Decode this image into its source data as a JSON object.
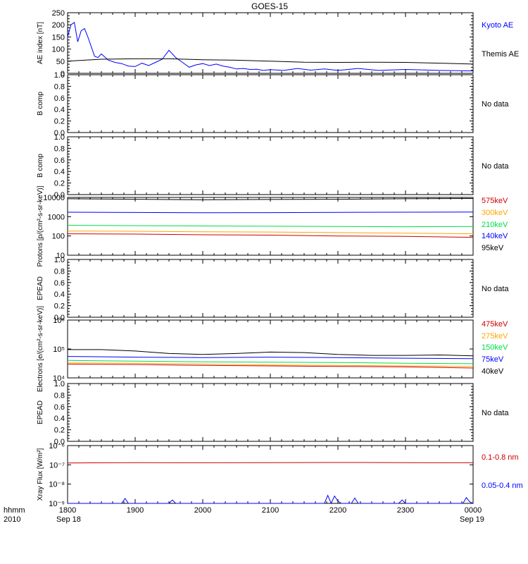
{
  "title": "GOES-15",
  "footer": {
    "hhmm_label": "hhmm",
    "year_label": "2010",
    "date_start": "Sep 18",
    "date_end": "Sep 19"
  },
  "x_ticks": [
    "1800",
    "1900",
    "2000",
    "2100",
    "2200",
    "2300",
    "0000"
  ],
  "colors": {
    "black": "#000000",
    "blue": "#0000ff",
    "red": "#cc0000",
    "orange": "#ffa500",
    "green": "#00dd44"
  },
  "chart_data": [
    {
      "type": "line",
      "ylabel": "AE index [nT]",
      "ylim": [
        0,
        250
      ],
      "scale": "linear",
      "yticks": [
        "0",
        "50",
        "100",
        "150",
        "200",
        "250"
      ],
      "series": [
        {
          "name": "Kyoto AE",
          "color": "#0000ff",
          "x": [
            0,
            0.05,
            0.1,
            0.15,
            0.2,
            0.25,
            0.3,
            0.35,
            0.4,
            0.45,
            0.5,
            0.6,
            0.7,
            0.8,
            0.9,
            1.0,
            1.1,
            1.2,
            1.3,
            1.4,
            1.5,
            1.6,
            1.7,
            1.8,
            1.9,
            2.0,
            2.1,
            2.2,
            2.3,
            2.4,
            2.5,
            2.6,
            2.7,
            2.8,
            2.9,
            3.0,
            3.2,
            3.4,
            3.6,
            3.8,
            4.0,
            4.3,
            4.6,
            5.0,
            5.5,
            6.0
          ],
          "y": [
            150,
            200,
            210,
            130,
            175,
            185,
            150,
            110,
            70,
            65,
            80,
            55,
            45,
            40,
            30,
            28,
            42,
            32,
            45,
            58,
            95,
            65,
            45,
            25,
            35,
            40,
            32,
            38,
            30,
            25,
            18,
            20,
            16,
            17,
            12,
            15,
            12,
            20,
            13,
            18,
            12,
            20,
            12,
            16,
            12,
            10
          ]
        },
        {
          "name": "Themis AE",
          "color": "#000000",
          "x": [
            0,
            0.5,
            1.0,
            1.5,
            2.0,
            2.5,
            3.0,
            3.5,
            4.0,
            4.5,
            5.0,
            5.5,
            6.0
          ],
          "y": [
            50,
            58,
            60,
            60,
            56,
            54,
            50,
            46,
            45,
            46,
            45,
            42,
            38
          ]
        }
      ]
    },
    {
      "type": "line",
      "ylabel": "B comp",
      "ylim": [
        0,
        1
      ],
      "scale": "linear",
      "yticks": [
        "0.0",
        "0.2",
        "0.4",
        "0.6",
        "0.8",
        "1.0"
      ],
      "note": "No data",
      "series": []
    },
    {
      "type": "line",
      "ylabel": "B comp",
      "ylim": [
        0,
        1
      ],
      "scale": "linear",
      "yticks": [
        "0.0",
        "0.2",
        "0.4",
        "0.6",
        "0.8",
        "1.0"
      ],
      "note": "No data",
      "series": []
    },
    {
      "type": "line",
      "ylabel": "Protons [p/(cm²-s-sr-keV)]",
      "ylim": [
        10,
        10000
      ],
      "scale": "log",
      "yticks": [
        "10",
        "100",
        "1000",
        "10000"
      ],
      "series": [
        {
          "name": "575keV",
          "color": "#cc0000",
          "x": [
            0,
            1,
            2,
            3,
            4,
            5,
            6
          ],
          "y": [
            130,
            125,
            115,
            110,
            100,
            95,
            85
          ]
        },
        {
          "name": "300keV",
          "color": "#ffa500",
          "x": [
            0,
            1,
            2,
            3,
            4,
            5,
            6
          ],
          "y": [
            180,
            175,
            165,
            160,
            150,
            140,
            130
          ]
        },
        {
          "name": "210keV",
          "color": "#00dd44",
          "x": [
            0,
            1,
            2,
            3,
            4,
            5,
            6
          ],
          "y": [
            360,
            340,
            330,
            320,
            310,
            300,
            310
          ]
        },
        {
          "name": "140keV",
          "color": "#0000ff",
          "x": [
            0,
            1,
            2,
            3,
            4,
            5,
            6
          ],
          "y": [
            1700,
            1650,
            1600,
            1620,
            1680,
            1700,
            1750
          ]
        },
        {
          "name": "95keV",
          "color": "#000000",
          "x": [
            0,
            1,
            2,
            3,
            4,
            5,
            6
          ],
          "y": [
            8500,
            8000,
            7500,
            7800,
            8000,
            8500,
            8800
          ]
        }
      ]
    },
    {
      "type": "line",
      "ylabel": "EPEAD",
      "ylim": [
        0,
        1
      ],
      "scale": "linear",
      "yticks": [
        "0.0",
        "0.2",
        "0.4",
        "0.6",
        "0.8",
        "1.0"
      ],
      "note": "No data",
      "series": []
    },
    {
      "type": "line",
      "ylabel": "Electrons [e/(cm²-s-sr-keV)]",
      "ylim": [
        10000,
        1000000
      ],
      "scale": "log",
      "yticks": [
        "10⁴",
        "10⁵",
        "10⁶"
      ],
      "series": [
        {
          "name": "475keV",
          "color": "#cc0000",
          "x": [
            0,
            1,
            2,
            3,
            4,
            5,
            6
          ],
          "y": [
            30000,
            29000,
            27000,
            26000,
            25000,
            24000,
            22000
          ]
        },
        {
          "name": "275keV",
          "color": "#ffa500",
          "x": [
            0,
            1,
            2,
            3,
            4,
            5,
            6
          ],
          "y": [
            33000,
            32000,
            30000,
            28000,
            27000,
            26000,
            25000
          ]
        },
        {
          "name": "150keV",
          "color": "#00dd44",
          "x": [
            0,
            1,
            2,
            3,
            4,
            5,
            6
          ],
          "y": [
            40000,
            38000,
            36000,
            35000,
            34000,
            32000,
            31000
          ]
        },
        {
          "name": "75keV",
          "color": "#0000ff",
          "x": [
            0,
            1,
            2,
            3,
            4,
            5,
            6
          ],
          "y": [
            55000,
            52000,
            50000,
            52000,
            50000,
            48000,
            46000
          ]
        },
        {
          "name": "40keV",
          "color": "#000000",
          "x": [
            0,
            0.5,
            1,
            1.5,
            2,
            2.5,
            3,
            3.5,
            4,
            4.5,
            5,
            5.5,
            6
          ],
          "y": [
            95000,
            95000,
            85000,
            70000,
            65000,
            70000,
            78000,
            75000,
            65000,
            60000,
            60000,
            62000,
            58000
          ]
        }
      ]
    },
    {
      "type": "line",
      "ylabel": "EPEAD",
      "ylim": [
        0,
        1
      ],
      "scale": "linear",
      "yticks": [
        "0.0",
        "0.2",
        "0.4",
        "0.6",
        "0.8",
        "1.0"
      ],
      "note": "No data",
      "series": []
    },
    {
      "type": "line",
      "ylabel": "Xray Flux [W/m²]",
      "ylim": [
        1e-09,
        1e-08
      ],
      "scale": "log",
      "yticks": [
        "10⁻⁹",
        "10⁻⁸",
        "10⁻⁷",
        "10⁻⁶"
      ],
      "series": [
        {
          "name": "0.1-0.8 nm",
          "color": "#cc0000",
          "x": [
            0,
            1,
            2,
            3,
            4,
            5,
            6
          ],
          "y": [
            1.25e-07,
            1.3e-07,
            1.28e-07,
            1.3e-07,
            1.32e-07,
            1.3e-07,
            1.28e-07
          ]
        },
        {
          "name": "0.05-0.4 nm",
          "color": "#0000ff",
          "x": [
            0,
            0.8,
            0.85,
            0.9,
            1.5,
            1.55,
            1.6,
            3.8,
            3.85,
            3.9,
            3.95,
            4.0,
            4.05,
            4.2,
            4.25,
            4.3,
            4.9,
            4.95,
            5.0,
            5.85,
            5.9,
            5.95,
            6.0
          ],
          "y": [
            1e-09,
            1e-09,
            1.8e-09,
            1e-09,
            1e-09,
            1.5e-09,
            1e-09,
            1e-09,
            2.6e-09,
            1e-09,
            2.4e-09,
            1.3e-09,
            1e-09,
            1e-09,
            1.9e-09,
            1e-09,
            1e-09,
            1.5e-09,
            1e-09,
            1e-09,
            2e-09,
            1.2e-09,
            1e-09
          ]
        }
      ]
    }
  ]
}
